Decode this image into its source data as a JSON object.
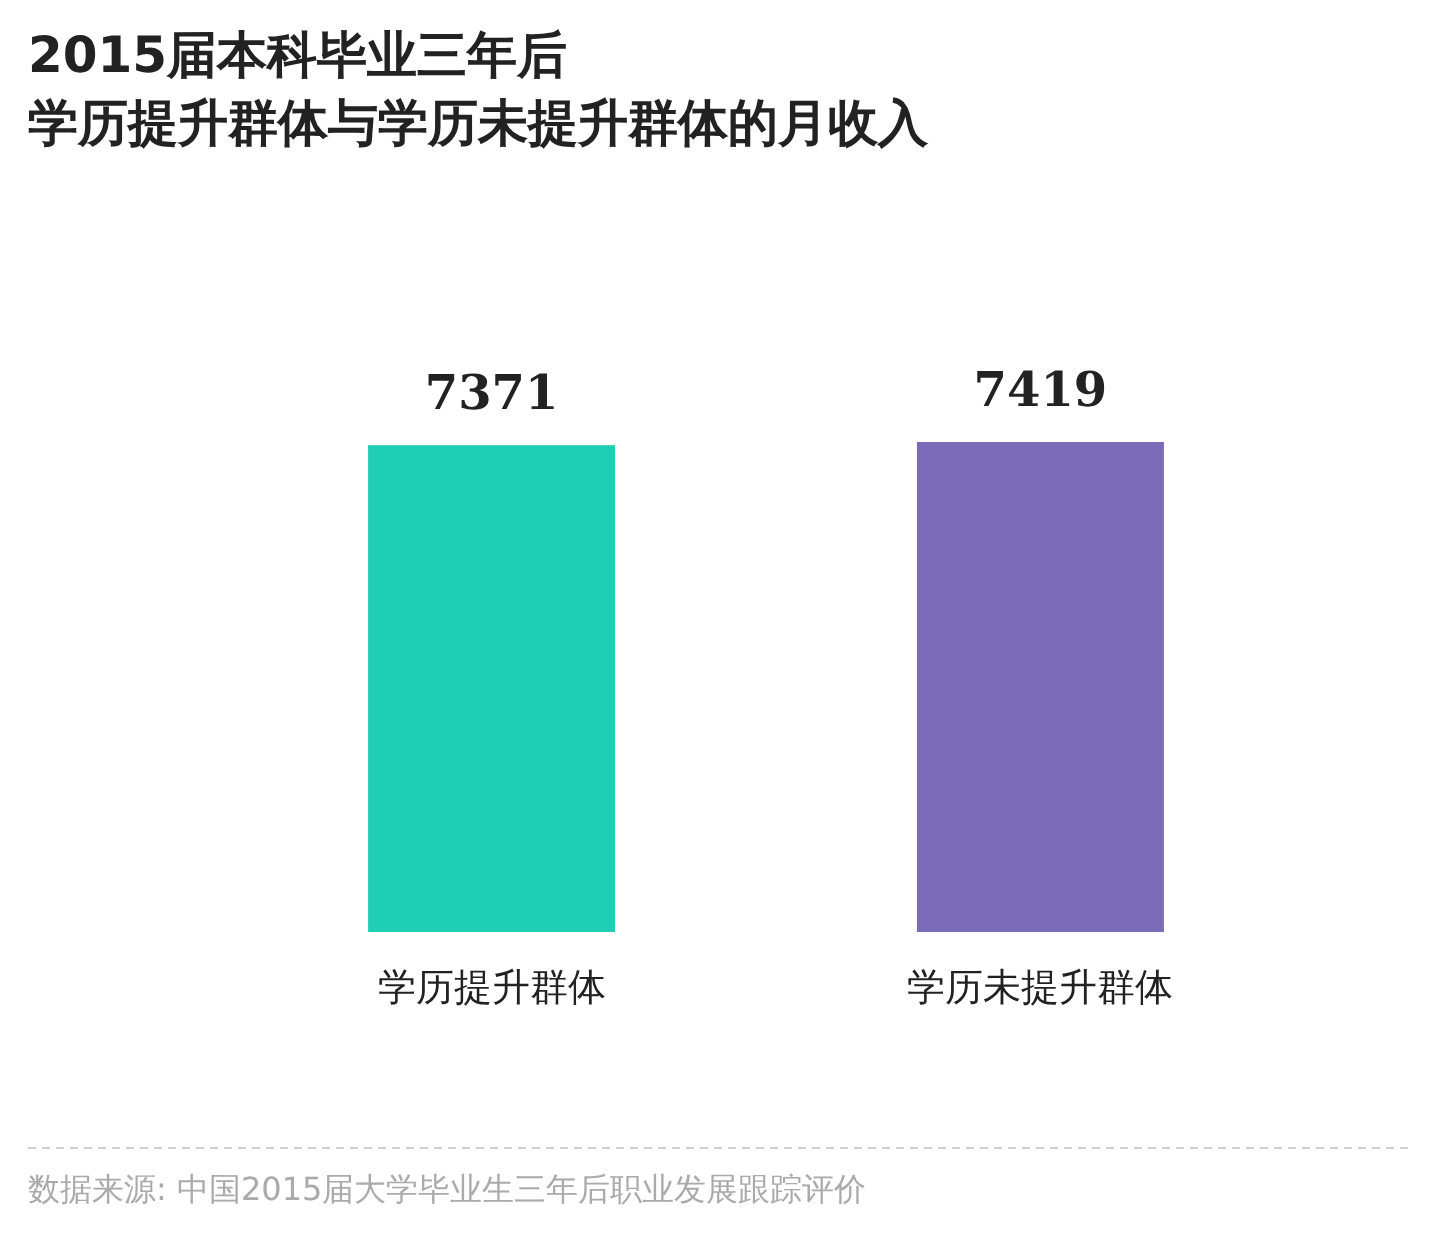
{
  "chart_data": {
    "type": "bar",
    "title": "2015届本科毕业三年后",
    "subtitle": "学历提升群体与学历未提升群体的月收入",
    "categories": [
      "学历提升群体",
      "学历未提升群体"
    ],
    "values": [
      7371,
      7419
    ],
    "colors": [
      "#1fcfb5",
      "#7b6bb8"
    ],
    "data_labels": true,
    "annotations": [
      "数据来源: 中国2015届大学毕业生三年后职业发展跟踪评价"
    ]
  }
}
